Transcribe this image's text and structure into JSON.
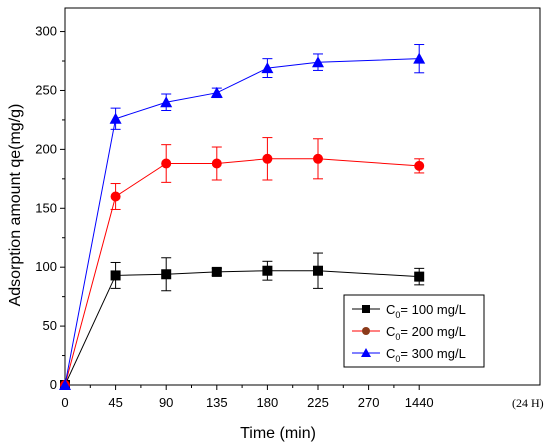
{
  "chart_data": {
    "type": "line",
    "title": "",
    "xlabel": "Time (min)",
    "ylabel": "Adsorption amount qe(mg/g)",
    "x_unit_note": "(24 H)",
    "categories": [
      "0",
      "45",
      "90",
      "135",
      "180",
      "225",
      "270",
      "1440"
    ],
    "ylim": [
      0,
      320
    ],
    "yticks": [
      0,
      50,
      100,
      150,
      200,
      250,
      300
    ],
    "grid": false,
    "legend_position": "bottom-right",
    "series": [
      {
        "name_prefix": "C",
        "name_sub": "0",
        "name_suffix": "= 100 mg/L",
        "color": "#000000",
        "marker": "square",
        "points": [
          {
            "x": "0",
            "y": 0,
            "err": 0
          },
          {
            "x": "45",
            "y": 93,
            "err": 11
          },
          {
            "x": "90",
            "y": 94,
            "err": 14
          },
          {
            "x": "135",
            "y": 96,
            "err": 3
          },
          {
            "x": "180",
            "y": 97,
            "err": 8
          },
          {
            "x": "225",
            "y": 97,
            "err": 15
          },
          {
            "x": "1440",
            "y": 92,
            "err": 7
          }
        ]
      },
      {
        "name_prefix": "C",
        "name_sub": "0",
        "name_suffix": "= 200 mg/L",
        "color": "#ff0000",
        "legend_marker_color": "#8b3a1a",
        "marker": "circle",
        "points": [
          {
            "x": "0",
            "y": 0,
            "err": 0
          },
          {
            "x": "45",
            "y": 160,
            "err": 11
          },
          {
            "x": "90",
            "y": 188,
            "err": 16
          },
          {
            "x": "135",
            "y": 188,
            "err": 14
          },
          {
            "x": "180",
            "y": 192,
            "err": 18
          },
          {
            "x": "225",
            "y": 192,
            "err": 17
          },
          {
            "x": "1440",
            "y": 186,
            "err": 6
          }
        ]
      },
      {
        "name_prefix": "C",
        "name_sub": "0",
        "name_suffix": "= 300 mg/L",
        "color": "#0000ff",
        "marker": "triangle",
        "points": [
          {
            "x": "0",
            "y": 0,
            "err": 0
          },
          {
            "x": "45",
            "y": 226,
            "err": 9
          },
          {
            "x": "90",
            "y": 240,
            "err": 7
          },
          {
            "x": "135",
            "y": 248,
            "err": 4
          },
          {
            "x": "180",
            "y": 269,
            "err": 8
          },
          {
            "x": "225",
            "y": 274,
            "err": 7
          },
          {
            "x": "1440",
            "y": 277,
            "err": 12
          }
        ]
      }
    ]
  }
}
